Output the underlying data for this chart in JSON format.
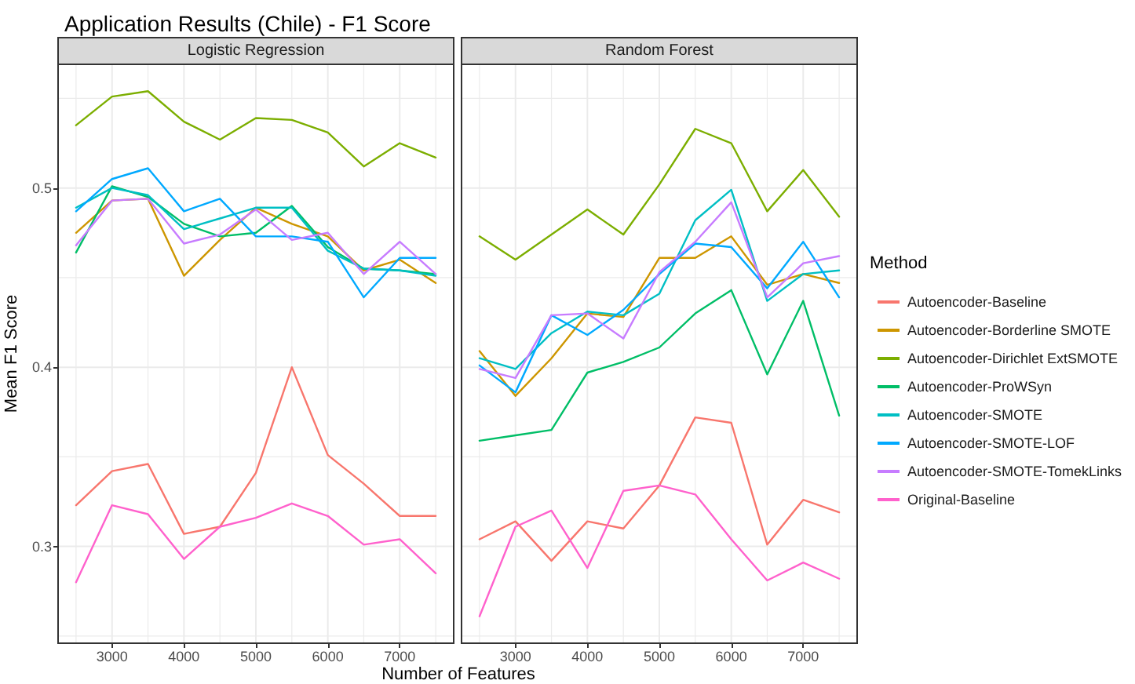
{
  "chart_data": [
    {
      "type": "line",
      "title": "Application Results (Chile) - F1 Score",
      "subtitle": "Logistic Regression",
      "xlabel": "Number of Features",
      "ylabel": "Mean F1 Score",
      "legend_title": "Method",
      "legend": "right",
      "x": [
        2500,
        3000,
        3500,
        4000,
        4500,
        5000,
        5500,
        6000,
        6500,
        7000,
        7500
      ],
      "xlim": [
        2250,
        7750
      ],
      "xticks": [
        {
          "value": 2500,
          "label": null
        },
        3000,
        {
          "value": 3500,
          "label": null
        },
        4000,
        {
          "value": 4500,
          "label": null
        },
        5000,
        {
          "value": 5500,
          "label": null
        },
        6000,
        {
          "value": 6500,
          "label": null
        },
        7000,
        {
          "value": 7500,
          "label": null
        }
      ],
      "ylim": [
        0.246,
        0.569
      ],
      "yticks": [
        {
          "value": 0.25,
          "label": null
        },
        0.3,
        {
          "value": 0.35,
          "label": null
        },
        0.4,
        {
          "value": 0.45,
          "label": null
        },
        0.5,
        {
          "value": 0.55,
          "label": null
        }
      ],
      "grid": true,
      "series": [
        {
          "name": "Autoencoder-Baseline",
          "color": "#f8766d",
          "values": [
            0.323,
            0.342,
            0.346,
            0.307,
            0.311,
            0.341,
            0.4,
            0.351,
            0.335,
            0.317,
            0.317
          ]
        },
        {
          "name": "Autoencoder-Borderline SMOTE",
          "color": "#cd9600",
          "values": [
            0.475,
            0.493,
            0.494,
            0.451,
            0.471,
            0.489,
            0.48,
            0.473,
            0.454,
            0.46,
            0.447
          ]
        },
        {
          "name": "Autoencoder-Dirichlet ExtSMOTE",
          "color": "#7cae00",
          "values": [
            0.535,
            0.551,
            0.554,
            0.537,
            0.527,
            0.539,
            0.538,
            0.531,
            0.512,
            0.525,
            0.517
          ]
        },
        {
          "name": "Autoencoder-ProWSyn",
          "color": "#00be67",
          "values": [
            0.464,
            0.501,
            0.495,
            0.48,
            0.473,
            0.475,
            0.49,
            0.467,
            0.455,
            0.454,
            0.452
          ]
        },
        {
          "name": "Autoencoder-SMOTE",
          "color": "#00bfc4",
          "values": [
            0.489,
            0.5,
            0.496,
            0.477,
            0.483,
            0.489,
            0.489,
            0.465,
            0.455,
            0.454,
            0.451
          ]
        },
        {
          "name": "Autoencoder-SMOTE-LOF",
          "color": "#00a9ff",
          "values": [
            0.487,
            0.505,
            0.511,
            0.487,
            0.494,
            0.473,
            0.473,
            0.47,
            0.439,
            0.461,
            0.461
          ]
        },
        {
          "name": "Autoencoder-SMOTE-TomekLinks",
          "color": "#c77cff",
          "values": [
            0.468,
            0.493,
            0.494,
            0.469,
            0.474,
            0.488,
            0.471,
            0.475,
            0.452,
            0.47,
            0.452
          ]
        },
        {
          "name": "Original-Baseline",
          "color": "#ff61cc",
          "values": [
            0.28,
            0.323,
            0.318,
            0.293,
            0.311,
            0.316,
            0.324,
            0.317,
            0.301,
            0.304,
            0.285
          ]
        }
      ]
    },
    {
      "type": "line",
      "subtitle": "Random Forest",
      "tick_labels": "x",
      "x": [
        2500,
        3000,
        3500,
        4000,
        4500,
        5000,
        5500,
        6000,
        6500,
        7000,
        7500
      ],
      "xlim": [
        2250,
        7750
      ],
      "xticks": [
        {
          "value": 2500,
          "label": null
        },
        3000,
        {
          "value": 3500,
          "label": null
        },
        4000,
        {
          "value": 4500,
          "label": null
        },
        5000,
        {
          "value": 5500,
          "label": null
        },
        6000,
        {
          "value": 6500,
          "label": null
        },
        7000,
        {
          "value": 7500,
          "label": null
        }
      ],
      "ylim": [
        0.246,
        0.569
      ],
      "yticks": [
        {
          "value": 0.25,
          "label": null
        },
        0.3,
        {
          "value": 0.35,
          "label": null
        },
        0.4,
        {
          "value": 0.45,
          "label": null
        },
        0.5,
        {
          "value": 0.55,
          "label": null
        }
      ],
      "grid": true,
      "series": [
        {
          "color": "#f8766d",
          "values": [
            0.304,
            0.314,
            0.292,
            0.314,
            0.31,
            0.334,
            0.372,
            0.369,
            0.301,
            0.326,
            0.319
          ]
        },
        {
          "color": "#cd9600",
          "values": [
            0.409,
            0.384,
            0.405,
            0.43,
            0.428,
            0.461,
            0.461,
            0.473,
            0.446,
            0.452,
            0.447
          ]
        },
        {
          "color": "#7cae00",
          "values": [
            0.473,
            0.46,
            0.474,
            0.488,
            0.474,
            0.502,
            0.533,
            0.525,
            0.487,
            0.51,
            0.484
          ]
        },
        {
          "color": "#00be67",
          "values": [
            0.359,
            0.362,
            0.365,
            0.397,
            0.403,
            0.411,
            0.43,
            0.443,
            0.396,
            0.437,
            0.373
          ]
        },
        {
          "color": "#00bfc4",
          "values": [
            0.405,
            0.399,
            0.419,
            0.431,
            0.429,
            0.441,
            0.482,
            0.499,
            0.437,
            0.452,
            0.454
          ]
        },
        {
          "color": "#00a9ff",
          "values": [
            0.401,
            0.386,
            0.429,
            0.418,
            0.432,
            0.452,
            0.469,
            0.467,
            0.444,
            0.47,
            0.439
          ]
        },
        {
          "color": "#c77cff",
          "values": [
            0.399,
            0.394,
            0.429,
            0.43,
            0.416,
            0.453,
            0.47,
            0.492,
            0.439,
            0.458,
            0.462
          ]
        },
        {
          "color": "#ff61cc",
          "values": [
            0.261,
            0.311,
            0.32,
            0.288,
            0.331,
            0.334,
            0.329,
            0.304,
            0.281,
            0.291,
            0.282
          ]
        }
      ]
    }
  ]
}
